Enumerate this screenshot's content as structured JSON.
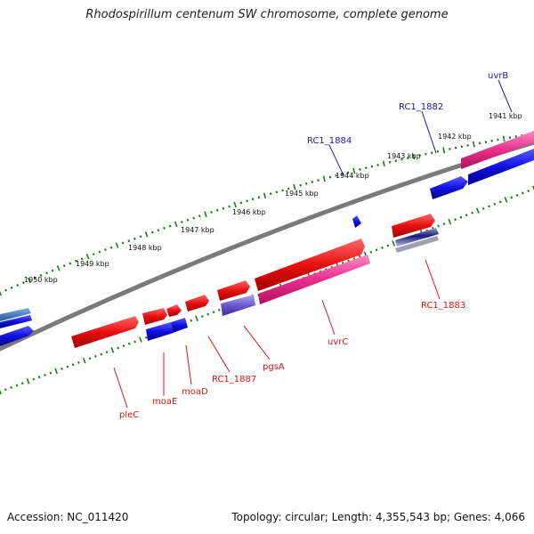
{
  "title": "Rhodospirillum centenum SW chromosome, complete genome",
  "footer": {
    "accession": "Accession: NC_011420",
    "topology": "Topology: circular; Length: 4,355,543 bp; Genes: 4,066"
  },
  "kbp_labels": [
    "1941 kbp",
    "1942 kbp",
    "1943 kbp",
    "1944 kbp",
    "1945 kbp",
    "1946 kbp",
    "1947 kbp",
    "1948 kbp",
    "1949 kbp",
    "1950 kbp"
  ],
  "genes": [
    {
      "name": "uvrB",
      "color": "#1a1aa8"
    },
    {
      "name": "RC1_1882",
      "color": "#1a1aa8"
    },
    {
      "name": "RC1_1884",
      "color": "#1a1aa8"
    },
    {
      "name": "RC1_1883",
      "color": "#d81414"
    },
    {
      "name": "uvrC",
      "color": "#d81414"
    },
    {
      "name": "pgsA",
      "color": "#d81414"
    },
    {
      "name": "RC1_1887",
      "color": "#d81414"
    },
    {
      "name": "moaD",
      "color": "#d81414"
    },
    {
      "name": "moaE",
      "color": "#d81414"
    },
    {
      "name": "pleC",
      "color": "#d81414"
    }
  ],
  "colors": {
    "backbone": "#7a7a7a",
    "tick": "#1f7a1f",
    "forward_gene": "#e81010",
    "reverse_gene": "#1010e0",
    "cds_forward": "#e8308c",
    "cds_reverse": "#6a5acd",
    "cds_other": "#4a7fc0"
  }
}
